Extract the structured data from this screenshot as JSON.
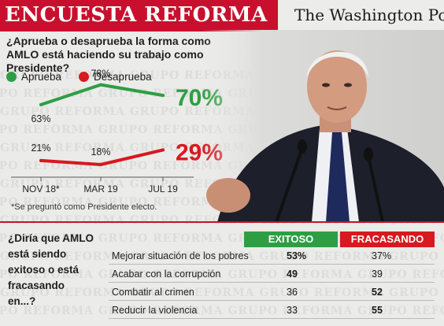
{
  "header": {
    "title": "ENCUESTA REFORMA",
    "brand": "The Washington Post"
  },
  "watermark_text": "GRUPO REFORMA",
  "question1": "¿Aprueba o desaprueba la forma como AMLO está haciendo su trabajo como Presidente?",
  "chart_data": {
    "type": "line",
    "categories": [
      "NOV 18*",
      "MAR 19",
      "JUL 19"
    ],
    "series": [
      {
        "name": "Aprueba",
        "color": "#2e9e44",
        "values": [
          63,
          78,
          70
        ],
        "labels": [
          "63%",
          "78%",
          "70%"
        ]
      },
      {
        "name": "Desaprueba",
        "color": "#d71920",
        "values": [
          21,
          18,
          29
        ],
        "labels": [
          "21%",
          "18%",
          "29%"
        ]
      }
    ],
    "footnote": "*Se preguntó  como Presidente electo."
  },
  "question2": "¿Diría que AMLO está siendo exitoso o está fracasando en...?",
  "table": {
    "headers": [
      "EXITOSO",
      "FRACASANDO"
    ],
    "rows": [
      {
        "label": "Mejorar situación de los pobres",
        "exitoso": "53%",
        "fracasando": "37%",
        "winner": "exitoso"
      },
      {
        "label": "Acabar con la corrupción",
        "exitoso": "49",
        "fracasando": "39",
        "winner": "exitoso"
      },
      {
        "label": "Combatir al crimen",
        "exitoso": "36",
        "fracasando": "52",
        "winner": "fracasando"
      },
      {
        "label": "Reducir la violencia",
        "exitoso": "33",
        "fracasando": "55",
        "winner": "fracasando"
      }
    ]
  }
}
